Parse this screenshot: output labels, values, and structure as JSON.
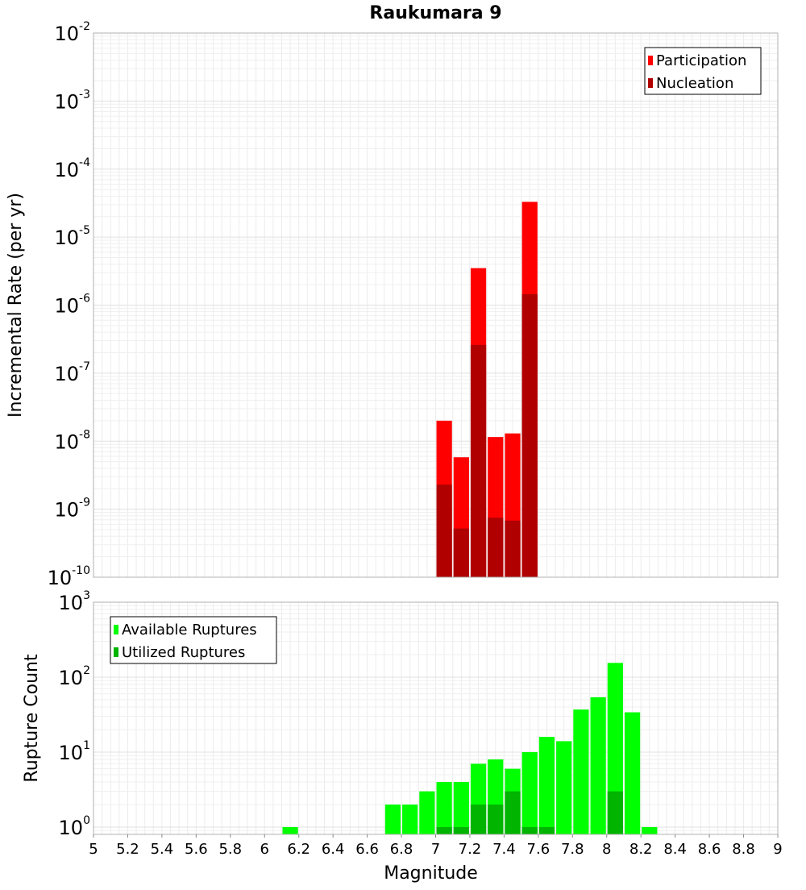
{
  "chart_data": [
    {
      "type": "bar",
      "title": "Raukumara 9",
      "ylabel": "Incremental Rate (per yr)",
      "xlabel": "",
      "yscale": "log",
      "ylim": [
        1e-10,
        0.01
      ],
      "xlim": [
        5,
        9
      ],
      "bar_width": 0.1,
      "grid": true,
      "legend_position": "top-right",
      "y_ticks": [
        {
          "base": "10",
          "exp": "-10",
          "value": 1e-10
        },
        {
          "base": "10",
          "exp": "-9",
          "value": 1e-09
        },
        {
          "base": "10",
          "exp": "-8",
          "value": 1e-08
        },
        {
          "base": "10",
          "exp": "-7",
          "value": 1e-07
        },
        {
          "base": "10",
          "exp": "-6",
          "value": 1e-06
        },
        {
          "base": "10",
          "exp": "-5",
          "value": 1e-05
        },
        {
          "base": "10",
          "exp": "-4",
          "value": 0.0001
        },
        {
          "base": "10",
          "exp": "-3",
          "value": 0.001
        },
        {
          "base": "10",
          "exp": "-2",
          "value": 0.01
        }
      ],
      "series": [
        {
          "name": "Participation",
          "color": "#ff0000",
          "points": [
            [
              7.05,
              2e-08
            ],
            [
              7.15,
              5.8e-09
            ],
            [
              7.25,
              3.5e-06
            ],
            [
              7.35,
              1.15e-08
            ],
            [
              7.45,
              1.3e-08
            ],
            [
              7.55,
              3.3e-05
            ]
          ]
        },
        {
          "name": "Nucleation",
          "color": "#b00000",
          "points": [
            [
              7.05,
              2.3e-09
            ],
            [
              7.15,
              5.2e-10
            ],
            [
              7.25,
              2.6e-07
            ],
            [
              7.35,
              7.5e-10
            ],
            [
              7.45,
              6.8e-10
            ],
            [
              7.55,
              1.45e-06
            ]
          ]
        }
      ]
    },
    {
      "type": "bar",
      "title": "",
      "ylabel": "Rupture Count",
      "xlabel": "Magnitude",
      "yscale": "log",
      "ylim": [
        0.8,
        1000
      ],
      "xlim": [
        5,
        9
      ],
      "bar_width": 0.1,
      "grid": true,
      "legend_position": "top-left",
      "x_ticks": [
        "5",
        "5.2",
        "5.4",
        "5.6",
        "5.8",
        "6",
        "6.2",
        "6.4",
        "6.6",
        "6.8",
        "7",
        "7.2",
        "7.4",
        "7.6",
        "7.8",
        "8",
        "8.2",
        "8.4",
        "8.6",
        "8.8",
        "9"
      ],
      "y_ticks": [
        {
          "base": "10",
          "exp": "0",
          "value": 1
        },
        {
          "base": "10",
          "exp": "1",
          "value": 10
        },
        {
          "base": "10",
          "exp": "2",
          "value": 100
        },
        {
          "base": "10",
          "exp": "3",
          "value": 1000
        }
      ],
      "series": [
        {
          "name": "Available Ruptures",
          "color": "#00ff00",
          "points": [
            [
              6.15,
              1
            ],
            [
              6.75,
              2
            ],
            [
              6.85,
              2
            ],
            [
              6.95,
              3
            ],
            [
              7.05,
              4
            ],
            [
              7.15,
              4
            ],
            [
              7.25,
              7
            ],
            [
              7.35,
              8
            ],
            [
              7.45,
              6
            ],
            [
              7.55,
              10
            ],
            [
              7.65,
              16
            ],
            [
              7.75,
              14
            ],
            [
              7.85,
              37
            ],
            [
              7.95,
              54
            ],
            [
              8.05,
              155
            ],
            [
              8.15,
              34
            ],
            [
              8.25,
              1
            ]
          ]
        },
        {
          "name": "Utilized Ruptures",
          "color": "#00b400",
          "points": [
            [
              7.05,
              1
            ],
            [
              7.15,
              1
            ],
            [
              7.25,
              2
            ],
            [
              7.35,
              2
            ],
            [
              7.45,
              3
            ],
            [
              7.55,
              1
            ],
            [
              7.65,
              1
            ],
            [
              8.05,
              3
            ]
          ]
        }
      ]
    }
  ]
}
